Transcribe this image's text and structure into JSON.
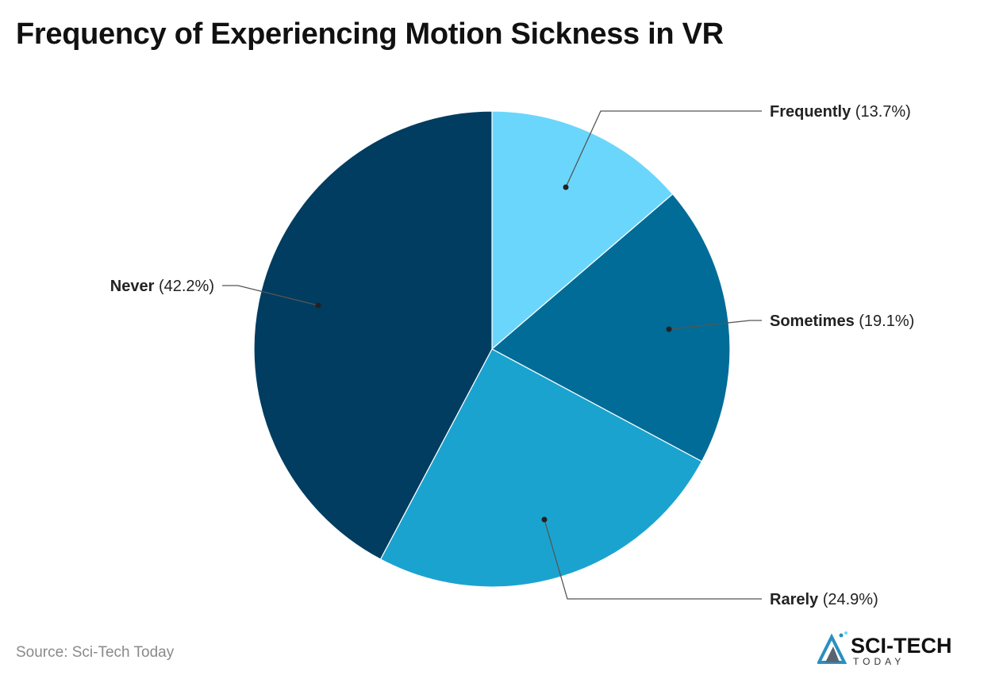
{
  "title": "Frequency of Experiencing Motion Sickness in VR",
  "source": "Source: Sci-Tech Today",
  "logo": {
    "line1": "SCI-TECH",
    "line2": "TODAY"
  },
  "chart_data": {
    "type": "pie",
    "title": "Frequency of Experiencing Motion Sickness in VR",
    "start": "top, clockwise",
    "slices": [
      {
        "label": "Frequently",
        "value": 13.7,
        "display": "(13.7%)",
        "color": "#6bd6fb"
      },
      {
        "label": "Sometimes",
        "value": 19.1,
        "display": "(19.1%)",
        "color": "#006c97"
      },
      {
        "label": "Rarely",
        "value": 24.9,
        "display": "(24.9%)",
        "color": "#1ba3cf"
      },
      {
        "label": "Never",
        "value": 42.2,
        "display": "(42.2%)",
        "color": "#003d60"
      }
    ]
  }
}
